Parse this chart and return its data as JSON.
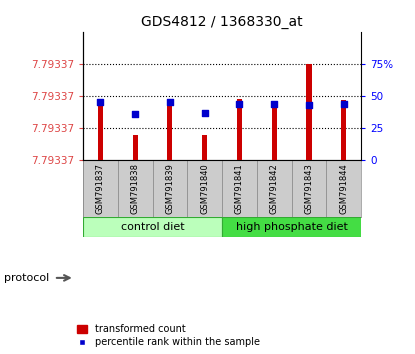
{
  "title": "GDS4812 / 1368330_at",
  "samples": [
    "GSM791837",
    "GSM791838",
    "GSM791839",
    "GSM791840",
    "GSM791841",
    "GSM791842",
    "GSM791843",
    "GSM791844"
  ],
  "bar_top_pct": [
    48,
    20,
    48,
    20,
    48,
    46,
    75,
    47
  ],
  "bar_bottom_pct": [
    0,
    0,
    0,
    0,
    0,
    0,
    0,
    0
  ],
  "blue_pct": [
    45,
    36,
    45,
    37,
    44,
    44,
    43,
    44
  ],
  "right_yticks": [
    0,
    25,
    50,
    75
  ],
  "right_ytick_labels": [
    "0",
    "25",
    "50",
    "75%"
  ],
  "left_ytick_labels": [
    "7.79337",
    "7.79337",
    "7.79337",
    "7.79337"
  ],
  "left_ytick_pcts": [
    0,
    25,
    50,
    75
  ],
  "dotted_lines_pct": [
    25,
    50,
    75
  ],
  "control_label": "control diet",
  "highphosphate_label": "high phosphate diet",
  "protocol_label": "protocol",
  "legend_red_label": "transformed count",
  "legend_blue_label": "percentile rank within the sample",
  "bar_color": "#CC0000",
  "blue_color": "#0000CC",
  "control_color": "#BBFFBB",
  "highphosphate_color": "#44DD44",
  "sample_bg_color": "#CCCCCC",
  "bar_width": 0.15,
  "figsize": [
    4.15,
    3.54
  ],
  "dpi": 100
}
